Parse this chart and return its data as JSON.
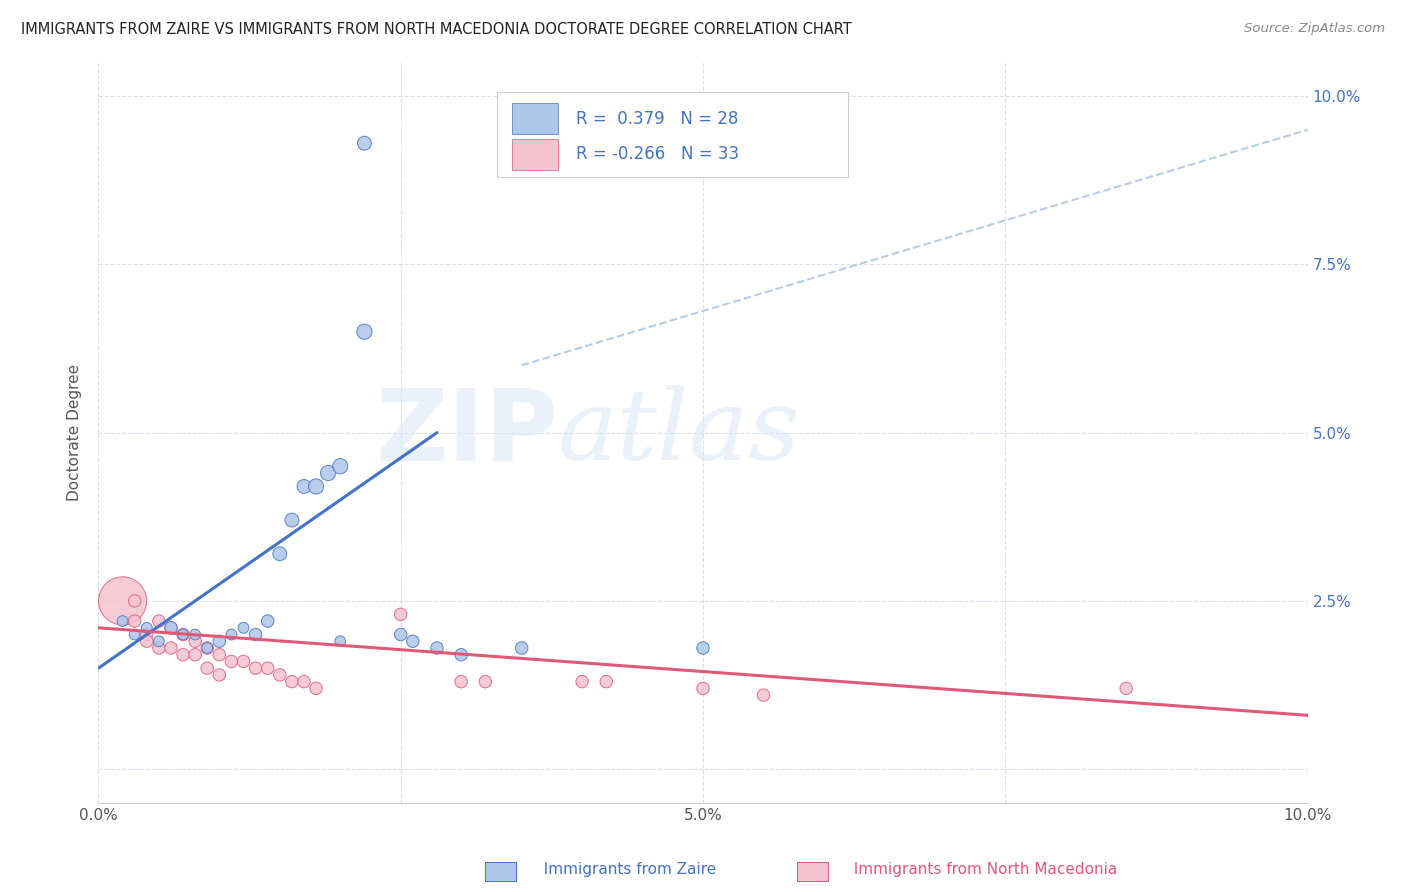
{
  "title": "IMMIGRANTS FROM ZAIRE VS IMMIGRANTS FROM NORTH MACEDONIA DOCTORATE DEGREE CORRELATION CHART",
  "source": "Source: ZipAtlas.com",
  "xlabel_zaire": "Immigrants from Zaire",
  "xlabel_macedonia": "Immigrants from North Macedonia",
  "ylabel": "Doctorate Degree",
  "r_zaire": 0.379,
  "n_zaire": 28,
  "r_macedonia": -0.266,
  "n_macedonia": 33,
  "xlim": [
    0.0,
    0.1
  ],
  "ylim": [
    -0.005,
    0.105
  ],
  "color_zaire": "#aec6e8",
  "color_macedonia": "#f4c2d0",
  "line_color_zaire": "#4472c4",
  "line_color_macedonia": "#e05878",
  "watermark": "ZIPatlas",
  "background_color": "#ffffff",
  "zaire_points": [
    [
      0.002,
      0.022
    ],
    [
      0.003,
      0.02
    ],
    [
      0.004,
      0.021
    ],
    [
      0.005,
      0.019
    ],
    [
      0.006,
      0.021
    ],
    [
      0.007,
      0.02
    ],
    [
      0.008,
      0.02
    ],
    [
      0.009,
      0.018
    ],
    [
      0.01,
      0.019
    ],
    [
      0.011,
      0.02
    ],
    [
      0.012,
      0.021
    ],
    [
      0.013,
      0.02
    ],
    [
      0.014,
      0.022
    ],
    [
      0.015,
      0.032
    ],
    [
      0.016,
      0.037
    ],
    [
      0.017,
      0.042
    ],
    [
      0.018,
      0.042
    ],
    [
      0.019,
      0.044
    ],
    [
      0.02,
      0.045
    ],
    [
      0.022,
      0.065
    ],
    [
      0.025,
      0.02
    ],
    [
      0.026,
      0.019
    ],
    [
      0.028,
      0.018
    ],
    [
      0.03,
      0.017
    ],
    [
      0.035,
      0.018
    ],
    [
      0.05,
      0.018
    ],
    [
      0.022,
      0.093
    ],
    [
      0.02,
      0.019
    ]
  ],
  "zaire_sizes": [
    60,
    60,
    60,
    60,
    80,
    60,
    60,
    60,
    80,
    60,
    60,
    80,
    80,
    100,
    100,
    100,
    120,
    120,
    120,
    120,
    80,
    80,
    80,
    80,
    80,
    80,
    100,
    60
  ],
  "macedonia_points": [
    [
      0.002,
      0.025
    ],
    [
      0.003,
      0.022
    ],
    [
      0.004,
      0.02
    ],
    [
      0.004,
      0.019
    ],
    [
      0.005,
      0.022
    ],
    [
      0.005,
      0.018
    ],
    [
      0.006,
      0.021
    ],
    [
      0.006,
      0.018
    ],
    [
      0.007,
      0.02
    ],
    [
      0.007,
      0.017
    ],
    [
      0.008,
      0.019
    ],
    [
      0.008,
      0.017
    ],
    [
      0.009,
      0.018
    ],
    [
      0.009,
      0.015
    ],
    [
      0.01,
      0.017
    ],
    [
      0.01,
      0.014
    ],
    [
      0.011,
      0.016
    ],
    [
      0.012,
      0.016
    ],
    [
      0.013,
      0.015
    ],
    [
      0.014,
      0.015
    ],
    [
      0.015,
      0.014
    ],
    [
      0.016,
      0.013
    ],
    [
      0.017,
      0.013
    ],
    [
      0.018,
      0.012
    ],
    [
      0.025,
      0.023
    ],
    [
      0.03,
      0.013
    ],
    [
      0.032,
      0.013
    ],
    [
      0.04,
      0.013
    ],
    [
      0.042,
      0.013
    ],
    [
      0.05,
      0.012
    ],
    [
      0.055,
      0.011
    ],
    [
      0.085,
      0.012
    ],
    [
      0.003,
      0.025
    ]
  ],
  "macedonia_sizes": [
    1200,
    80,
    80,
    80,
    80,
    80,
    80,
    80,
    80,
    80,
    80,
    80,
    80,
    80,
    80,
    80,
    80,
    80,
    80,
    80,
    80,
    80,
    80,
    80,
    80,
    80,
    80,
    80,
    80,
    80,
    80,
    80,
    80
  ]
}
